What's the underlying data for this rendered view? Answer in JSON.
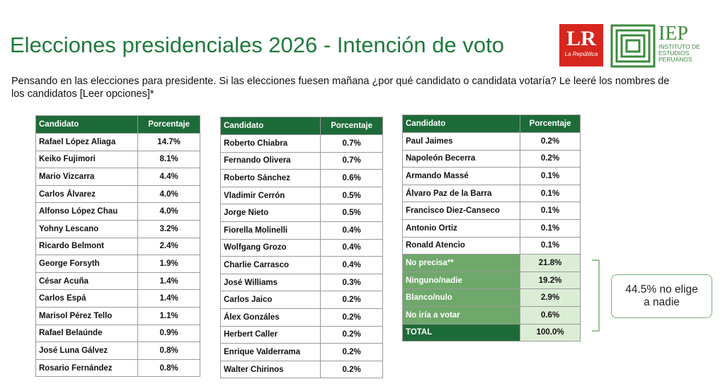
{
  "header": {
    "title": "Elecciones presidenciales 2026 - Intención de voto",
    "subtitle": "Pensando en las elecciones para presidente. Si las elecciones fuesen mañana ¿por qué candidato o candidata votaría? Le leeré los nombres de los candidatos [Leer opciones]*",
    "logo_lr": "LR",
    "logo_lr_sub": "La República",
    "logo_iep": "IEP",
    "logo_iep_sub": "INSTITUTO DE ESTUDIOS PERUANOS"
  },
  "tables": [
    {
      "header": [
        "Candidato",
        "Porcentaje"
      ],
      "rows": [
        [
          "Rafael López Aliaga",
          "14.7%"
        ],
        [
          "Keiko Fujimori",
          "8.1%"
        ],
        [
          "Mario Vizcarra",
          "4.4%"
        ],
        [
          "Carlos Álvarez",
          "4.0%"
        ],
        [
          "Alfonso López Chau",
          "4.0%"
        ],
        [
          "Yohny Lescano",
          "3.2%"
        ],
        [
          "Ricardo Belmont",
          "2.4%"
        ],
        [
          "George Forsyth",
          "1.9%"
        ],
        [
          "César Acuña",
          "1.4%"
        ],
        [
          "Carlos Espá",
          "1.4%"
        ],
        [
          "Marisol Pérez Tello",
          "1.1%"
        ],
        [
          "Rafael Belaúnde",
          "0.9%"
        ],
        [
          "José Luna Gálvez",
          "0.8%"
        ],
        [
          "Rosario Fernández",
          "0.8%"
        ]
      ]
    },
    {
      "header": [
        "Candidato",
        "Porcentaje"
      ],
      "rows": [
        [
          "Roberto Chiabra",
          "0.7%"
        ],
        [
          "Fernando Olivera",
          "0.7%"
        ],
        [
          "Roberto Sánchez",
          "0.6%"
        ],
        [
          "Vladimir Cerrón",
          "0.5%"
        ],
        [
          "Jorge Nieto",
          "0.5%"
        ],
        [
          "Fiorella Molinelli",
          "0.4%"
        ],
        [
          "Wolfgang Grozo",
          "0.4%"
        ],
        [
          "Charlie Carrasco",
          "0.4%"
        ],
        [
          "José Williams",
          "0.3%"
        ],
        [
          "Carlos Jaico",
          "0.2%"
        ],
        [
          "Álex Gonzáles",
          "0.2%"
        ],
        [
          "Herbert Caller",
          "0.2%"
        ],
        [
          "Enrique Valderrama",
          "0.2%"
        ],
        [
          "Walter Chirinos",
          "0.2%"
        ]
      ]
    },
    {
      "header": [
        "Candidato",
        "Porcentaje"
      ],
      "rows": [
        [
          "Paul Jaimes",
          "0.2%"
        ],
        [
          "Napoleón Becerra",
          "0.2%"
        ],
        [
          "Armando Massé",
          "0.1%"
        ],
        [
          "Álvaro Paz de la Barra",
          "0.1%"
        ],
        [
          "Francisco Diez-Canseco",
          "0.1%"
        ],
        [
          "Antonio Ortiz",
          "0.1%"
        ],
        [
          "Ronald Atencio",
          "0.1%"
        ]
      ],
      "summary_rows": [
        [
          "No precisa**",
          "21.8%"
        ],
        [
          "Ninguno/nadie",
          "19.2%"
        ],
        [
          "Blanco/nulo",
          "2.9%"
        ],
        [
          "No iría a votar",
          "0.6%"
        ]
      ],
      "total_row": [
        "TOTAL",
        "100.0%"
      ]
    }
  ],
  "annotation": "44.5% no elige a nadie"
}
